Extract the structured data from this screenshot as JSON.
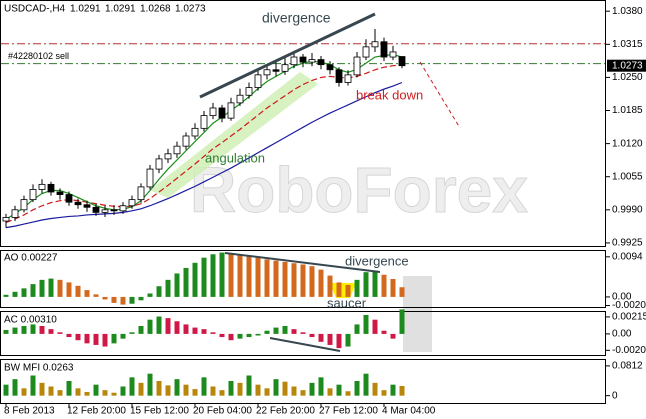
{
  "chart_data": [
    {
      "type": "candlestick",
      "title": "USDCAD-,H4",
      "categories": [
        "8 Feb 2013",
        null,
        null,
        null,
        null,
        null,
        null,
        "12 Feb 20:00",
        null,
        null,
        null,
        null,
        null,
        null,
        "15 Feb 12:00",
        null,
        null,
        null,
        null,
        null,
        null,
        "20 Feb 04:00",
        null,
        null,
        null,
        null,
        null,
        null,
        "22 Feb 20:00",
        null,
        null,
        null,
        null,
        null,
        null,
        "27 Feb 12:00",
        null,
        null,
        null,
        null,
        null,
        null,
        "4 Mar 04:00",
        null,
        null
      ],
      "open": [
        0.9968,
        0.9975,
        0.999,
        1.001,
        1.003,
        1.004,
        1.0025,
        1.002,
        1.0005,
        1.0,
        0.9995,
        0.9985,
        0.999,
        0.9988,
        0.9998,
        1.001,
        1.0035,
        1.007,
        1.009,
        1.01,
        1.0115,
        1.0135,
        1.015,
        1.0175,
        1.019,
        1.017,
        1.02,
        1.0215,
        1.023,
        1.0255,
        1.0265,
        1.0262,
        1.0275,
        1.029,
        1.028,
        1.0285,
        1.0275,
        1.0265,
        1.024,
        1.0255,
        1.029,
        1.031,
        1.032,
        1.029,
        1.0291
      ],
      "high": [
        0.9982,
        0.9998,
        1.0018,
        1.004,
        1.005,
        1.0045,
        1.0032,
        1.0026,
        1.0012,
        1.0008,
        1.0002,
        0.9998,
        0.9999,
        1.0005,
        1.0018,
        1.0042,
        1.0078,
        1.0098,
        1.011,
        1.0124,
        1.0142,
        1.016,
        1.0184,
        1.02,
        1.0196,
        1.021,
        1.0228,
        1.024,
        1.0268,
        1.0276,
        1.028,
        1.0288,
        1.0302,
        1.0296,
        1.0298,
        1.0292,
        1.0282,
        1.027,
        1.0264,
        1.03,
        1.0325,
        1.0345,
        1.0328,
        1.0312,
        1.0291
      ],
      "low": [
        0.9955,
        0.9968,
        0.9985,
        1.0005,
        1.0022,
        1.0018,
        1.001,
        0.9998,
        0.9992,
        0.9986,
        0.9978,
        0.9976,
        0.998,
        0.9982,
        0.9992,
        1.0004,
        1.003,
        1.0062,
        1.0082,
        1.0092,
        1.0108,
        1.0128,
        1.0144,
        1.0168,
        1.0162,
        1.0165,
        1.0194,
        1.0208,
        1.0224,
        1.0246,
        1.0252,
        1.0255,
        1.0268,
        1.027,
        1.0272,
        1.0266,
        1.0256,
        1.0232,
        1.0234,
        1.025,
        1.0284,
        1.03,
        1.0282,
        1.0284,
        1.0268
      ],
      "close": [
        0.9975,
        0.999,
        1.001,
        1.003,
        1.004,
        1.0025,
        1.002,
        1.0005,
        1.0,
        0.9995,
        0.9985,
        0.999,
        0.9988,
        0.9998,
        1.001,
        1.0035,
        1.007,
        1.009,
        1.01,
        1.0115,
        1.0135,
        1.015,
        1.0175,
        1.019,
        1.017,
        1.02,
        1.0215,
        1.023,
        1.0255,
        1.0265,
        1.0262,
        1.0275,
        1.029,
        1.028,
        1.0285,
        1.0275,
        1.0265,
        1.024,
        1.0255,
        1.029,
        1.031,
        1.032,
        1.029,
        1.03,
        1.0273
      ],
      "lines": [
        {
          "color": "#1a1aa0",
          "dash": false,
          "values": [
            0.9955,
            0.9958,
            0.9962,
            0.9966,
            0.997,
            0.9973,
            0.9975,
            0.9977,
            0.9978,
            0.998,
            0.9981,
            0.9982,
            0.9983,
            0.9985,
            0.9988,
            0.9992,
            0.9998,
            1.0005,
            1.0012,
            1.002,
            1.0028,
            1.0036,
            1.0045,
            1.0054,
            1.0063,
            1.0072,
            1.0082,
            1.0092,
            1.0102,
            1.0112,
            1.0122,
            1.0132,
            1.0142,
            1.0152,
            1.0162,
            1.0171,
            1.018,
            1.0188,
            1.0196,
            1.0204,
            1.0212,
            1.022,
            1.0227,
            1.0233,
            1.024
          ]
        },
        {
          "color": "#d01818",
          "dash": true,
          "values": [
            0.9965,
            0.9972,
            0.998,
            0.999,
            0.9998,
            1.0004,
            1.0008,
            1.001,
            1.0008,
            1.0005,
            1.0002,
            0.9999,
            0.9997,
            0.9996,
            0.9997,
            1.0002,
            1.0012,
            1.0025,
            1.0038,
            1.0052,
            1.0066,
            1.008,
            1.0095,
            1.011,
            1.0122,
            1.0135,
            1.0148,
            1.0162,
            1.0176,
            1.019,
            1.0202,
            1.0214,
            1.0226,
            1.0236,
            1.0244,
            1.025,
            1.0252,
            1.025,
            1.0249,
            1.0252,
            1.0258,
            1.0265,
            1.027,
            1.0273,
            1.0274
          ]
        },
        {
          "color": "#1b8f1b",
          "dash": false,
          "values": [
            0.9972,
            0.9982,
            0.9995,
            1.001,
            1.0022,
            1.0028,
            1.0028,
            1.0022,
            1.0014,
            1.0006,
            0.9998,
            0.9993,
            0.999,
            0.9991,
            0.9996,
            1.0008,
            1.0028,
            1.005,
            1.007,
            1.0088,
            1.0106,
            1.0124,
            1.0142,
            1.016,
            1.0172,
            1.0185,
            1.0198,
            1.0212,
            1.0228,
            1.0242,
            1.0252,
            1.0262,
            1.0272,
            1.0278,
            1.0282,
            1.028,
            1.0275,
            1.0265,
            1.026,
            1.0266,
            1.0278,
            1.029,
            1.0293,
            1.0295,
            1.029
          ]
        }
      ],
      "levels": [
        {
          "value": 1.0316,
          "color": "#b03030"
        },
        {
          "value": 1.0277,
          "color": "#2e7d32",
          "label": "#42280102 sell"
        }
      ],
      "ylim": [
        0.9917,
        1.0402
      ],
      "yticks": [
        {
          "value": 1.038,
          "label": "1.0380"
        },
        1.0315,
        {
          "value": 1.025,
          "label": "1.0250"
        },
        1.0185,
        {
          "value": 1.012,
          "label": "1.0120"
        },
        1.0055,
        {
          "value": 0.999,
          "label": "0.9990"
        },
        0.9925
      ],
      "annotations": [
        "divergence",
        "angulation",
        "break down"
      ],
      "watermark": "RoboForex"
    },
    {
      "type": "bar",
      "title": "AO 0.00227",
      "up_color": "#1c8a1c",
      "down_color": "#d2691e",
      "values": [
        0.0005,
        0.0012,
        0.002,
        0.003,
        0.004,
        0.0043,
        0.004,
        0.0034,
        0.0026,
        0.0016,
        0.0006,
        -0.0006,
        -0.0014,
        -0.0018,
        -0.0016,
        -0.0008,
        0.0008,
        0.0025,
        0.004,
        0.0055,
        0.0068,
        0.008,
        0.0092,
        0.01,
        0.0104,
        0.0102,
        0.0098,
        0.0095,
        0.0092,
        0.0088,
        0.0085,
        0.0082,
        0.0079,
        0.0076,
        0.0072,
        0.0064,
        0.005,
        0.0034,
        0.0028,
        0.004,
        0.0058,
        0.0062,
        0.0052,
        0.0042,
        0.00227
      ],
      "ylim": [
        -0.0026,
        0.011
      ],
      "yticks": [
        0.0094,
        {
          "value": 0,
          "label": "0.00"
        },
        -0.00202
      ],
      "annotations": [
        "divergence",
        "saucer"
      ]
    },
    {
      "type": "bar",
      "title": "AC 0.00310",
      "up_color": "#1c8a1c",
      "down_color": "#d01848",
      "values": [
        0.0005,
        0.0008,
        0.001,
        0.0012,
        0.001,
        0.0006,
        0.0002,
        -0.0004,
        -0.0008,
        -0.0012,
        -0.0014,
        -0.0016,
        -0.0012,
        -0.0006,
        0.0002,
        0.001,
        0.0018,
        0.0022,
        0.002,
        0.0016,
        0.0012,
        0.0008,
        0.0006,
        0.0002,
        -0.0004,
        -0.0008,
        -0.0006,
        -0.0004,
        -0.0002,
        0.0004,
        0.0008,
        0.001,
        0.0006,
        0.0002,
        -0.0004,
        -0.001,
        -0.0014,
        -0.0018,
        -0.0016,
        0.0012,
        0.0024,
        0.0018,
        0.0004,
        -0.0006,
        0.0031
      ],
      "ylim": [
        -0.0028,
        0.0029
      ],
      "yticks": [
        0.00215,
        {
          "value": 0,
          "label": "0.00"
        },
        -0.00208
      ]
    },
    {
      "type": "bar",
      "title": "BW MFI 0.0263",
      "up_color": "#1c8a1c",
      "down_color": "#b8860b",
      "values": [
        0.03,
        0.045,
        0.02,
        0.055,
        0.035,
        0.025,
        0.015,
        0.04,
        0.02,
        0.01,
        0.03,
        0.015,
        0.008,
        0.025,
        0.05,
        0.035,
        0.06,
        0.04,
        0.028,
        0.045,
        0.03,
        0.018,
        0.05,
        0.025,
        0.015,
        0.04,
        0.035,
        0.055,
        0.03,
        0.02,
        0.045,
        0.038,
        0.025,
        0.015,
        0.035,
        0.05,
        0.02,
        0.03,
        0.012,
        0.04,
        0.06,
        0.035,
        0.015,
        0.03,
        0.0263
      ],
      "ylim": [
        -0.02,
        0.1
      ],
      "yticks": [
        0.0812,
        0
      ]
    }
  ]
}
